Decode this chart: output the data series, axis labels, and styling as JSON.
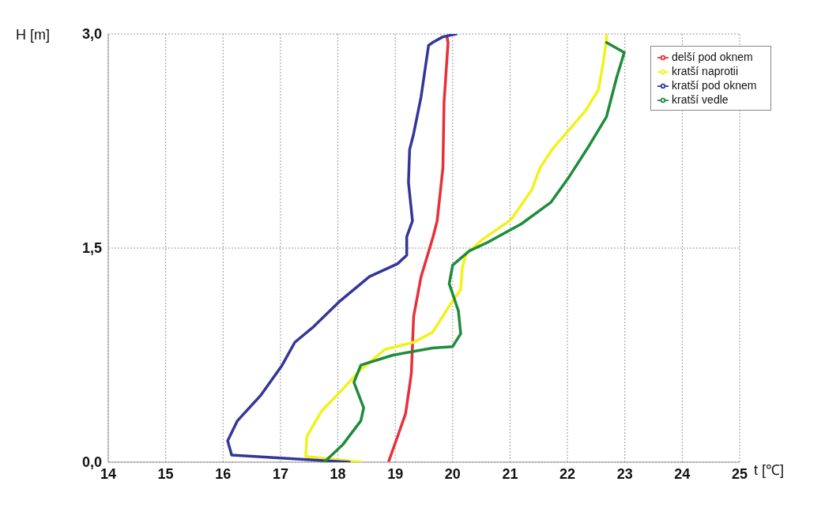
{
  "chart_data": {
    "type": "line",
    "xlabel": "t [℃]",
    "ylabel": "H [m]",
    "xlim": [
      14,
      25
    ],
    "xticks": [
      14,
      15,
      16,
      17,
      18,
      19,
      20,
      21,
      22,
      23,
      24,
      25
    ],
    "ylim": [
      0,
      3
    ],
    "yticks": [
      {
        "value": 0,
        "label": "0,0"
      },
      {
        "value": 1.5,
        "label": "1,5"
      },
      {
        "value": 3,
        "label": "3,0"
      }
    ],
    "grid": true,
    "legend": "top right",
    "series": [
      {
        "name": "delší pod oknem",
        "color": "#e8303a",
        "x": [
          18.89,
          19.04,
          19.18,
          19.28,
          19.32,
          19.45,
          19.66,
          19.73,
          19.83,
          19.85,
          19.92,
          19.9
        ],
        "values": [
          0.01,
          0.18,
          0.34,
          0.62,
          1.02,
          1.3,
          1.58,
          1.69,
          2.06,
          2.52,
          2.94,
          2.98
        ]
      },
      {
        "name": "kratší naprotii",
        "color": "#f2f21a",
        "x": [
          18.4,
          17.44,
          17.46,
          17.72,
          18.08,
          18.4,
          18.82,
          19.32,
          19.65,
          19.95,
          20.14,
          20.17,
          20.24,
          20.52,
          21.02,
          21.38,
          21.52,
          21.75,
          22.31,
          22.54,
          22.62,
          22.68,
          22.68
        ],
        "values": [
          0,
          0.04,
          0.18,
          0.36,
          0.51,
          0.65,
          0.79,
          0.84,
          0.91,
          1.1,
          1.21,
          1.37,
          1.46,
          1.56,
          1.7,
          1.91,
          2.06,
          2.2,
          2.46,
          2.61,
          2.79,
          2.96,
          3.0
        ]
      },
      {
        "name": "kratší pod oknem",
        "color": "#35359a",
        "x": [
          18.2,
          16.15,
          16.08,
          16.25,
          16.66,
          17.03,
          17.25,
          17.58,
          18.04,
          18.55,
          19.04,
          19.2,
          19.2,
          19.3,
          19.23,
          19.25,
          19.32,
          19.45,
          19.58,
          19.65,
          19.83,
          20.06
        ],
        "values": [
          0,
          0.05,
          0.15,
          0.29,
          0.47,
          0.68,
          0.84,
          0.95,
          1.13,
          1.3,
          1.39,
          1.45,
          1.58,
          1.69,
          1.96,
          2.19,
          2.3,
          2.56,
          2.92,
          2.94,
          2.98,
          3.0
        ]
      },
      {
        "name": "kratší vedle",
        "color": "#1f8c3a",
        "x": [
          17.76,
          18.08,
          18.4,
          18.45,
          18.28,
          18.4,
          18.96,
          19.65,
          20.0,
          20.14,
          20.1,
          19.94,
          20.0,
          20.29,
          20.61,
          21.2,
          21.71,
          22.03,
          22.35,
          22.68,
          22.86,
          22.99,
          22.68
        ],
        "values": [
          0,
          0.12,
          0.29,
          0.38,
          0.56,
          0.68,
          0.75,
          0.8,
          0.81,
          0.9,
          1.06,
          1.25,
          1.38,
          1.48,
          1.54,
          1.67,
          1.82,
          2.0,
          2.2,
          2.42,
          2.7,
          2.87,
          2.94
        ]
      }
    ]
  }
}
